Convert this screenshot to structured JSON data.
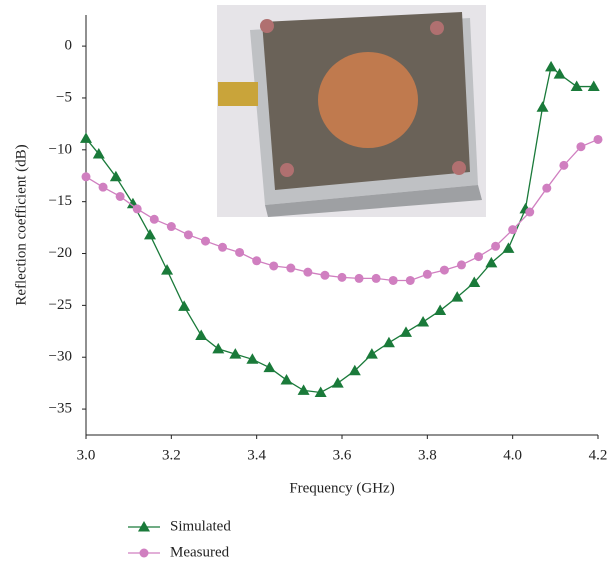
{
  "chart_data": {
    "type": "line",
    "x_label": "Frequency (GHz)",
    "y_label": "Reflection coefficient (dB)",
    "xlim": [
      3.0,
      4.2
    ],
    "ylim": [
      -37.5,
      3
    ],
    "xticks": [
      {
        "value": 3.0,
        "label": "3.0"
      },
      {
        "value": 3.2,
        "label": "3.2"
      },
      {
        "value": 3.4,
        "label": "3.4"
      },
      {
        "value": 3.6,
        "label": "3.6"
      },
      {
        "value": 3.8,
        "label": "3.8"
      },
      {
        "value": 4.0,
        "label": "4.0"
      },
      {
        "value": 4.2,
        "label": "4.2"
      }
    ],
    "yticks": [
      0,
      {
        "value": -5,
        "label": "−5"
      },
      {
        "value": -10,
        "label": "−10"
      },
      {
        "value": -15,
        "label": "−15"
      },
      {
        "value": -20,
        "label": "−20"
      },
      {
        "value": -25,
        "label": "−25"
      },
      {
        "value": -30,
        "label": "−30"
      },
      {
        "value": -35,
        "label": "−35"
      }
    ],
    "series": [
      {
        "name": "Simulated",
        "color": "#1a7a3a",
        "marker": "triangle",
        "x": [
          3.0,
          3.03,
          3.07,
          3.11,
          3.15,
          3.19,
          3.23,
          3.27,
          3.31,
          3.35,
          3.39,
          3.43,
          3.47,
          3.51,
          3.55,
          3.59,
          3.63,
          3.67,
          3.71,
          3.75,
          3.79,
          3.83,
          3.87,
          3.91,
          3.95,
          3.99,
          4.03,
          4.07,
          4.09,
          4.11,
          4.15,
          4.19
        ],
        "values": [
          -8.9,
          -10.4,
          -12.6,
          -15.2,
          -18.2,
          -21.6,
          -25.1,
          -27.9,
          -29.2,
          -29.7,
          -30.2,
          -31.0,
          -32.2,
          -33.2,
          -33.4,
          -32.5,
          -31.3,
          -29.7,
          -28.6,
          -27.6,
          -26.6,
          -25.5,
          -24.2,
          -22.8,
          -20.9,
          -19.5,
          -15.7,
          -5.9,
          -2.0,
          -2.7,
          -3.9,
          -3.9
        ]
      },
      {
        "name": "Measured",
        "color": "#d07fc0",
        "marker": "circle",
        "x": [
          3.0,
          3.04,
          3.08,
          3.12,
          3.16,
          3.2,
          3.24,
          3.28,
          3.32,
          3.36,
          3.4,
          3.44,
          3.48,
          3.52,
          3.56,
          3.6,
          3.64,
          3.68,
          3.72,
          3.76,
          3.8,
          3.84,
          3.88,
          3.92,
          3.96,
          4.0,
          4.04,
          4.08,
          4.12,
          4.16,
          4.2
        ],
        "values": [
          -12.6,
          -13.6,
          -14.5,
          -15.7,
          -16.7,
          -17.4,
          -18.2,
          -18.8,
          -19.4,
          -19.9,
          -20.7,
          -21.2,
          -21.4,
          -21.8,
          -22.1,
          -22.3,
          -22.4,
          -22.4,
          -22.6,
          -22.6,
          -22.0,
          -21.6,
          -21.1,
          -20.3,
          -19.3,
          -17.7,
          -16.0,
          -13.7,
          -11.5,
          -9.7,
          -9.0
        ]
      }
    ]
  }
}
